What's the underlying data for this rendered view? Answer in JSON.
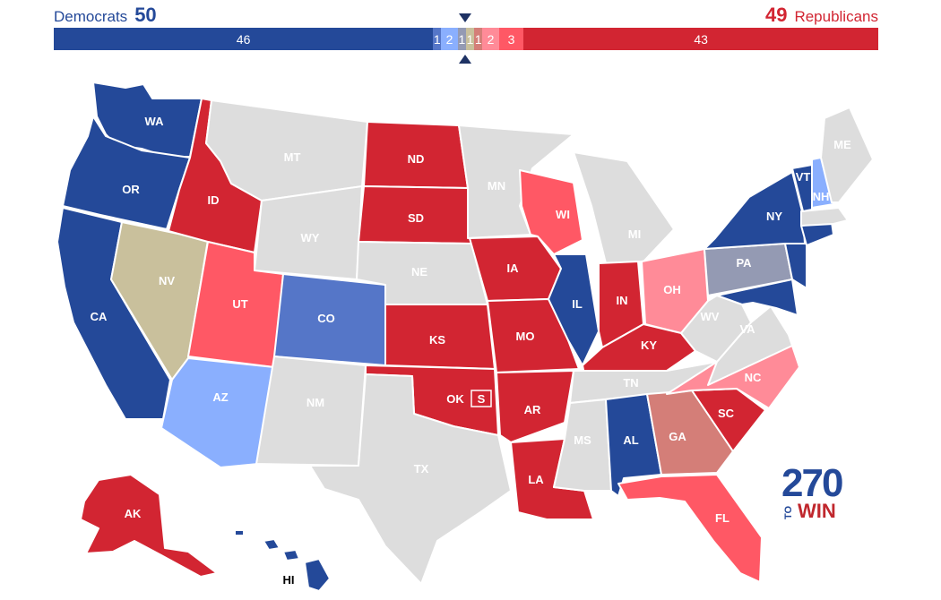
{
  "header": {
    "dem_label": "Democrats",
    "dem_total": "50",
    "rep_total": "49",
    "rep_label": "Republicans"
  },
  "bar": [
    {
      "label": "46",
      "value": 46,
      "color": "#244999"
    },
    {
      "label": "1",
      "value": 1,
      "color": "#5576c8"
    },
    {
      "label": "2",
      "value": 2,
      "color": "#8aaffe"
    },
    {
      "label": "1",
      "value": 1,
      "color": "#949ab3"
    },
    {
      "label": "1",
      "value": 1,
      "color": "#c9c09c"
    },
    {
      "label": "1",
      "value": 1,
      "color": "#d47e78"
    },
    {
      "label": "2",
      "value": 2,
      "color": "#ff8b98"
    },
    {
      "label": "3",
      "value": 3,
      "color": "#ff5865"
    },
    {
      "label": "43",
      "value": 43,
      "color": "#d22532"
    }
  ],
  "colors": {
    "safe_d": "#244999",
    "likely_d": "#5576c8",
    "lean_d": "#8aaffe",
    "tilt_d": "#949ab3",
    "tossup": "#c9c09c",
    "tilt_r": "#d47e78",
    "lean_r": "#ff8b98",
    "likely_r": "#ff5865",
    "safe_r": "#d22532",
    "no_race": "#dddddd"
  },
  "states": {
    "WA": "WA",
    "OR": "OR",
    "CA": "CA",
    "NV": "NV",
    "ID": "ID",
    "MT": "MT",
    "WY": "WY",
    "UT": "UT",
    "AZ": "AZ",
    "CO": "CO",
    "NM": "NM",
    "ND": "ND",
    "SD": "SD",
    "NE": "NE",
    "KS": "KS",
    "OK": "OK",
    "TX": "TX",
    "MN": "MN",
    "IA": "IA",
    "MO": "MO",
    "AR": "AR",
    "LA": "LA",
    "WI": "WI",
    "IL": "IL",
    "MI": "MI",
    "IN": "IN",
    "OH": "OH",
    "KY": "KY",
    "TN": "TN",
    "MS": "MS",
    "AL": "AL",
    "GA": "GA",
    "FL": "FL",
    "SC": "SC",
    "NC": "NC",
    "VA": "VA",
    "WV": "WV",
    "PA": "PA",
    "NY": "NY",
    "VT": "VT",
    "NH": "NH",
    "ME": "ME",
    "AK": "AK",
    "HI": "HI"
  },
  "special_marker": "S",
  "logo": {
    "number": "270",
    "to": "TO",
    "win": "WIN"
  }
}
